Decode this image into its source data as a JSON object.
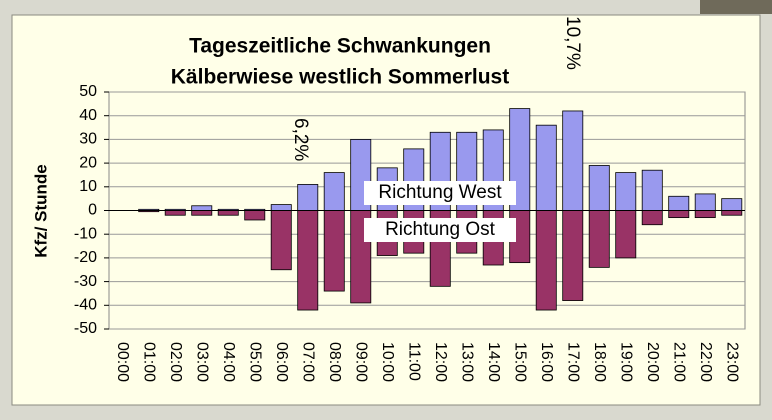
{
  "chart_data": {
    "type": "bar",
    "title": [
      "Tageszeitliche Schwankungen",
      "Kälberwiese westlich Sommerlust"
    ],
    "y_label": "Kfz/ Stunde",
    "categories": [
      "00:00",
      "01:00",
      "02:00",
      "03:00",
      "04:00",
      "05:00",
      "06:00",
      "07:00",
      "08:00",
      "09:00",
      "10:00",
      "11:00",
      "12:00",
      "13:00",
      "14:00",
      "15:00",
      "16:00",
      "17:00",
      "18:00",
      "19:00",
      "20:00",
      "21:00",
      "22:00",
      "23:00"
    ],
    "series": [
      {
        "name": "Richtung West",
        "color": "#9999ee",
        "values": [
          0,
          0.5,
          0.5,
          2,
          0.5,
          0.5,
          2.5,
          11,
          16,
          30,
          18,
          26,
          33,
          33,
          34,
          43,
          36,
          42,
          19,
          16,
          17,
          6,
          7,
          5
        ]
      },
      {
        "name": "Richtung Ost",
        "color": "#993366",
        "values": [
          0,
          -0.5,
          -2,
          -2,
          -2,
          -4,
          -25,
          -42,
          -34,
          -39,
          -19,
          -18,
          -32,
          -18,
          -23,
          -22,
          -42,
          -38,
          -24,
          -20,
          -6,
          -3,
          -3,
          -2
        ]
      }
    ],
    "annotations": [
      "6,2%",
      "10,7%"
    ],
    "ylim": [
      -50,
      50
    ],
    "yticks": [
      -50,
      -40,
      -30,
      -20,
      -10,
      0,
      10,
      20,
      30,
      40,
      50
    ],
    "grid": true
  }
}
